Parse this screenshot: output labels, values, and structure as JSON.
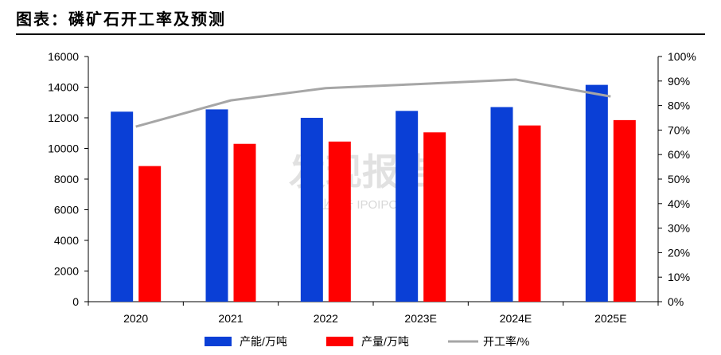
{
  "header": {
    "title": "图表：磷矿石开工率及预测"
  },
  "watermark": {
    "main": "发现报告",
    "sub": "行业报告 IPOIPO.CN"
  },
  "chart_data": {
    "type": "bar",
    "categories": [
      "2020",
      "2021",
      "2022",
      "2023E",
      "2024E",
      "2025E"
    ],
    "series": [
      {
        "name": "产能/万吨",
        "kind": "bar",
        "axis": "left",
        "color": "#0a3fd6",
        "values": [
          12400,
          12550,
          12000,
          12450,
          12700,
          14150
        ]
      },
      {
        "name": "产量/万吨",
        "kind": "bar",
        "axis": "left",
        "color": "#ff0000",
        "values": [
          8850,
          10300,
          10450,
          11050,
          11500,
          11850
        ]
      },
      {
        "name": "开工率/%",
        "kind": "line",
        "axis": "right",
        "color": "#a6a6a6",
        "values": [
          71.4,
          82.1,
          87.1,
          88.8,
          90.6,
          83.7
        ]
      }
    ],
    "y_left": {
      "min": 0,
      "max": 16000,
      "step": 2000,
      "ticks": [
        "0",
        "2000",
        "4000",
        "6000",
        "8000",
        "10000",
        "12000",
        "14000",
        "16000"
      ]
    },
    "y_right": {
      "min": 0,
      "max": 100,
      "step": 10,
      "ticks": [
        "0%",
        "10%",
        "20%",
        "30%",
        "40%",
        "50%",
        "60%",
        "70%",
        "80%",
        "90%",
        "100%"
      ]
    },
    "legend_position": "bottom",
    "grid": false
  }
}
